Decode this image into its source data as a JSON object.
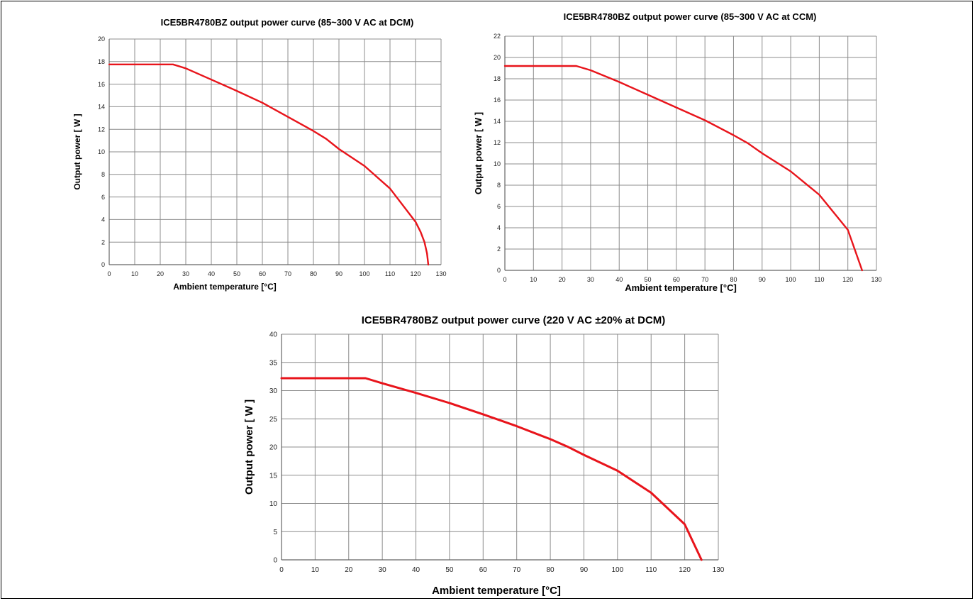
{
  "chart_data": [
    {
      "type": "line",
      "title": "ICE5BR4780BZ  output power curve (85~300 V AC at DCM)",
      "xlabel": "Ambient temperature [°C]",
      "ylabel": "Output power [ W ]",
      "xlim": [
        0,
        130
      ],
      "ylim": [
        0,
        20
      ],
      "x_ticks": [
        0,
        10,
        20,
        30,
        40,
        50,
        60,
        70,
        80,
        90,
        100,
        110,
        120,
        130
      ],
      "y_ticks": [
        0,
        2,
        4,
        6,
        8,
        10,
        12,
        14,
        16,
        18,
        20
      ],
      "grid": true,
      "series": [
        {
          "color": "#e8141b",
          "x": [
            0,
            25,
            30,
            40,
            50,
            60,
            70,
            80,
            85,
            90,
            100,
            110,
            120,
            122,
            123.5,
            124.5,
            125
          ],
          "y": [
            17.75,
            17.75,
            17.4,
            16.4,
            15.4,
            14.35,
            13.1,
            11.85,
            11.15,
            10.25,
            8.75,
            6.75,
            3.8,
            2.9,
            2.0,
            1.0,
            0
          ]
        }
      ]
    },
    {
      "type": "line",
      "title": "ICE5BR4780BZ  output power curve (85~300 V AC at CCM)",
      "xlabel": "Ambient temperature [°C]",
      "ylabel": "Output power [ W ]",
      "xlim": [
        0,
        130
      ],
      "ylim": [
        0,
        22
      ],
      "x_ticks": [
        0,
        10,
        20,
        30,
        40,
        50,
        60,
        70,
        80,
        90,
        100,
        110,
        120,
        130
      ],
      "y_ticks": [
        0,
        2,
        4,
        6,
        8,
        10,
        12,
        14,
        16,
        18,
        20,
        22
      ],
      "grid": true,
      "series": [
        {
          "color": "#e8141b",
          "x": [
            0,
            25,
            30,
            40,
            50,
            60,
            70,
            80,
            85,
            90,
            100,
            110,
            120,
            125
          ],
          "y": [
            19.2,
            19.2,
            18.8,
            17.7,
            16.5,
            15.3,
            14.1,
            12.7,
            11.95,
            11.0,
            9.3,
            7.1,
            3.8,
            0
          ]
        }
      ]
    },
    {
      "type": "line",
      "title": "ICE5BR4780BZ  output power curve (220 V AC ±20% at DCM)",
      "xlabel": "Ambient temperature [°C]",
      "ylabel": "Output power [ W ]",
      "xlim": [
        0,
        130
      ],
      "ylim": [
        0,
        40
      ],
      "x_ticks": [
        0,
        10,
        20,
        30,
        40,
        50,
        60,
        70,
        80,
        90,
        100,
        110,
        120,
        130
      ],
      "y_ticks": [
        0,
        5,
        10,
        15,
        20,
        25,
        30,
        35,
        40
      ],
      "grid": true,
      "series": [
        {
          "color": "#e8141b",
          "x": [
            0,
            25,
            30,
            40,
            50,
            60,
            70,
            80,
            85,
            90,
            100,
            110,
            120,
            125
          ],
          "y": [
            32.2,
            32.2,
            31.3,
            29.6,
            27.8,
            25.8,
            23.7,
            21.4,
            20.1,
            18.6,
            15.8,
            11.9,
            6.3,
            0
          ]
        }
      ]
    }
  ]
}
